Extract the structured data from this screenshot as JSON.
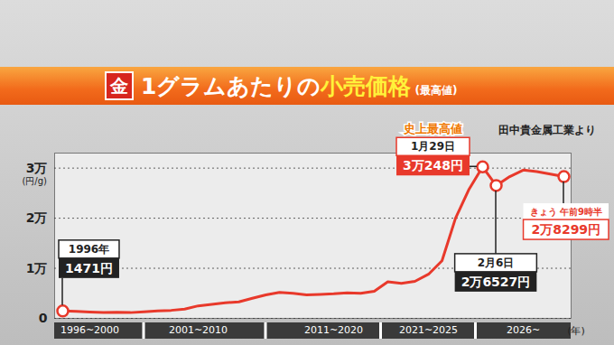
{
  "chart_data": {
    "type": "line",
    "title_badge": "金",
    "title": [
      "1グラムあたりの",
      "小売価格"
    ],
    "title_note": "(最高値)",
    "source": "田中貴金属工業より",
    "ylabel": "(円/g)",
    "xlabel": "(年)",
    "categories": [
      null,
      null,
      "1996~2000",
      null,
      null,
      null,
      null,
      null,
      null,
      null,
      "2001~2010",
      null,
      null,
      null,
      null,
      null,
      null,
      null,
      null,
      null,
      "2011~2020",
      null,
      null,
      null,
      null,
      null,
      null,
      "2021~2025",
      null,
      null,
      null,
      null,
      null,
      null,
      "2026~",
      null,
      null,
      null
    ],
    "values": [
      1471,
      1400,
      1250,
      1150,
      1200,
      1150,
      1300,
      1500,
      1600,
      1850,
      2500,
      2800,
      3100,
      3300,
      4000,
      4700,
      5200,
      5000,
      4700,
      4800,
      4900,
      5100,
      5000,
      5400,
      7300,
      7000,
      7400,
      8800,
      11500,
      20000,
      25800,
      30248,
      26527,
      28300,
      29600,
      29300,
      28800,
      28299
    ],
    "color": "#e8392b",
    "ylim": [
      0,
      33000
    ],
    "yticks": [
      0,
      {
        "value": 10000,
        "label": "1万"
      },
      {
        "value": 20000,
        "label": "2万"
      },
      {
        "value": 30000,
        "label": "3万"
      }
    ],
    "grid": true,
    "annotations": [
      {
        "label": "1996年",
        "value_label": "1471円",
        "value": 1471
      },
      {
        "header": "史上最高値",
        "label": "1月29日",
        "value_label": "3万248円",
        "value": 30248
      },
      {
        "label": "2月6日",
        "value_label": "2万6527円",
        "value": 26527
      },
      {
        "label": "きょう 午前9時半",
        "value_label": "2万8299円",
        "value": 28299
      }
    ]
  }
}
